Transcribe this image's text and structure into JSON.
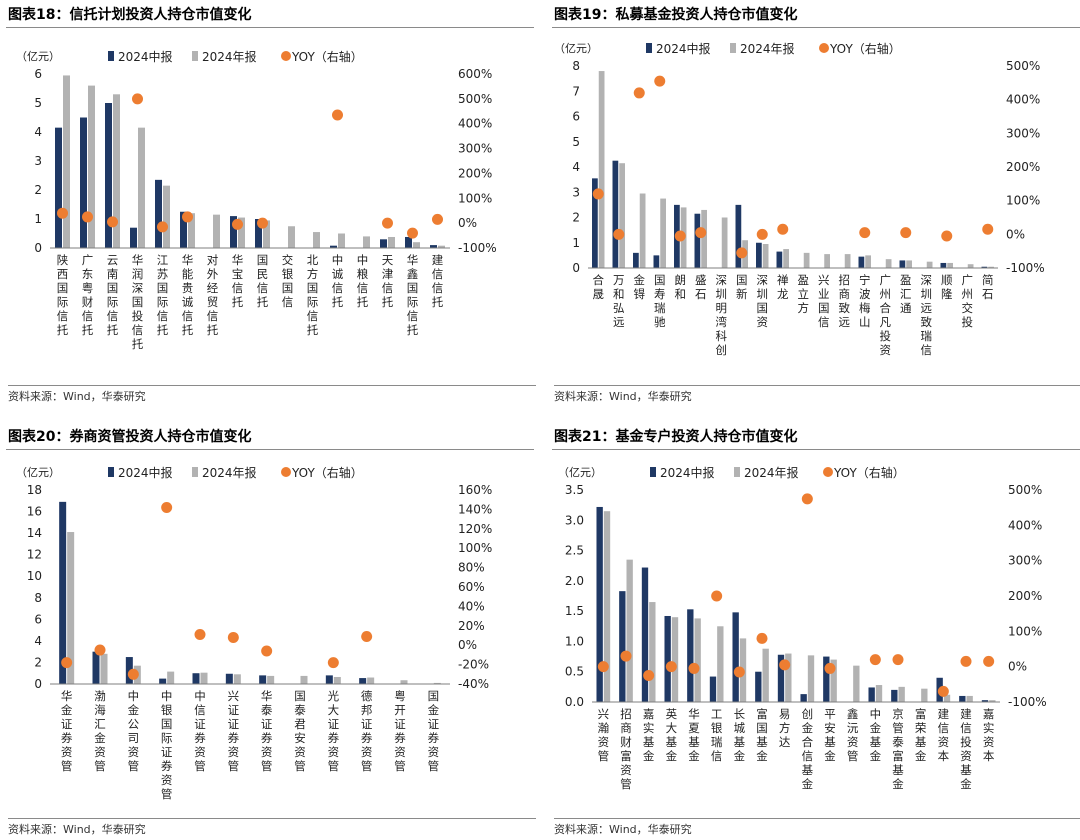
{
  "panels": [
    {
      "title": "图表18：信托计划投资人持仓市值变化",
      "source": "资料来源：Wind，华泰研究",
      "chart_data": {
        "type": "bar",
        "unit_label": "（亿元）",
        "legend": [
          "2024中报",
          "2024年报",
          "YOY（右轴）"
        ],
        "categories": [
          "陕西国际信托",
          "广东粤财信托",
          "云南国际信托",
          "华润深国投信托",
          "江苏国际信托",
          "华能贵诚信托",
          "对外经贸信托",
          "华宝信托",
          "国民信托",
          "交银国信",
          "北方国际信托",
          "中诚信托",
          "中粮信托",
          "天津信托",
          "华鑫国际信托",
          "建信信托"
        ],
        "series": [
          {
            "name": "2024中报",
            "values": [
              4.15,
              4.5,
              5.0,
              0.7,
              2.35,
              1.25,
              0,
              1.1,
              1.0,
              0,
              0,
              0.08,
              0,
              0.3,
              0.38,
              0.1
            ]
          },
          {
            "name": "2024年报",
            "values": [
              5.95,
              5.6,
              5.3,
              4.15,
              2.15,
              1.2,
              1.15,
              1.05,
              0.95,
              0.75,
              0.55,
              0.5,
              0.4,
              0.38,
              0.2,
              0.08
            ]
          },
          {
            "name": "YOY（右轴）",
            "axis": "right",
            "values": [
              40,
              25,
              5,
              500,
              -15,
              25,
              null,
              -5,
              0,
              null,
              null,
              435,
              null,
              0,
              -40,
              15
            ]
          }
        ],
        "left_ticks": [
          "0",
          "1",
          "2",
          "3",
          "4",
          "5",
          "6"
        ],
        "right_ticks": [
          "-100%",
          "0%",
          "100%",
          "200%",
          "300%",
          "400%",
          "500%",
          "600%"
        ],
        "ylim": [
          0,
          6
        ],
        "y2lim": [
          -100,
          600
        ]
      }
    },
    {
      "title": "图表19：私募基金投资人持仓市值变化",
      "source": "资料来源：Wind，华泰研究",
      "chart_data": {
        "type": "bar",
        "unit_label": "（亿元）",
        "legend": [
          "2024中报",
          "2024年报",
          "YOY（右轴）"
        ],
        "categories": [
          "合晟",
          "万和弘远",
          "金锝",
          "国寿瑞驰",
          "朗和",
          "盛石",
          "深圳明湾科创",
          "国新",
          "深圳国资",
          "禅龙",
          "盈立方",
          "兴业国信",
          "招商致远",
          "宁波梅山",
          "广州合凡投资",
          "盈汇通",
          "深圳远致瑞信",
          "顺隆",
          "广州交投",
          "简石"
        ],
        "series": [
          {
            "name": "2024中报",
            "values": [
              3.55,
              4.25,
              0.6,
              0.5,
              2.5,
              2.15,
              0,
              2.5,
              1.0,
              0.65,
              0,
              0,
              0,
              0.45,
              0,
              0.3,
              0,
              0.2,
              0,
              0.05
            ]
          },
          {
            "name": "2024年报",
            "values": [
              7.8,
              4.15,
              2.95,
              2.75,
              2.4,
              2.3,
              2.0,
              1.1,
              0.95,
              0.75,
              0.6,
              0.55,
              0.55,
              0.5,
              0.35,
              0.3,
              0.25,
              0.2,
              0.15,
              0.05
            ]
          },
          {
            "name": "YOY（右轴）",
            "axis": "right",
            "values": [
              120,
              0,
              420,
              455,
              -5,
              5,
              null,
              -55,
              0,
              15,
              null,
              null,
              null,
              5,
              null,
              5,
              null,
              -5,
              null,
              15
            ]
          }
        ],
        "left_ticks": [
          "0",
          "1",
          "2",
          "3",
          "4",
          "5",
          "6",
          "7",
          "8"
        ],
        "right_ticks": [
          "-100%",
          "0%",
          "100%",
          "200%",
          "300%",
          "400%",
          "500%"
        ],
        "ylim": [
          0,
          8
        ],
        "y2lim": [
          -100,
          500
        ]
      }
    },
    {
      "title": "图表20：券商资管投资人持仓市值变化",
      "source": "资料来源：Wind，华泰研究",
      "chart_data": {
        "type": "bar",
        "unit_label": "（亿元）",
        "legend": [
          "2024中报",
          "2024年报",
          "YOY（右轴）"
        ],
        "categories": [
          "华金证券资管",
          "渤海汇金资管",
          "中金公司资管",
          "中银国际证券资管",
          "中信证券资管",
          "兴证证券资管",
          "华泰证券资管",
          "国泰君安资管",
          "光大证券资管",
          "德邦证券资管",
          "粤开证券资管",
          "国金证券资管"
        ],
        "series": [
          {
            "name": "2024中报",
            "values": [
              16.9,
              3.0,
              2.5,
              0.5,
              1.0,
              0.95,
              0.8,
              0,
              0.8,
              0.55,
              0,
              0
            ]
          },
          {
            "name": "2024年报",
            "values": [
              14.1,
              2.8,
              1.7,
              1.15,
              1.05,
              0.9,
              0.75,
              0.75,
              0.65,
              0.6,
              0.35,
              0.1
            ]
          },
          {
            "name": "YOY（右轴）",
            "axis": "right",
            "values": [
              -18,
              -5,
              -30,
              142,
              11,
              8,
              -6,
              null,
              -18,
              9,
              null,
              null
            ]
          }
        ],
        "left_ticks": [
          "0",
          "2",
          "4",
          "6",
          "8",
          "10",
          "12",
          "14",
          "16",
          "18"
        ],
        "right_ticks": [
          "-40%",
          "-20%",
          "0%",
          "20%",
          "40%",
          "60%",
          "80%",
          "100%",
          "120%",
          "140%",
          "160%"
        ],
        "ylim": [
          0,
          18
        ],
        "y2lim": [
          -40,
          160
        ]
      }
    },
    {
      "title": "图表21：基金专户投资人持仓市值变化",
      "source": "资料来源：Wind，华泰研究",
      "chart_data": {
        "type": "bar",
        "unit_label": "（亿元）",
        "legend": [
          "2024中报",
          "2024年报",
          "YOY（右轴）"
        ],
        "categories": [
          "兴瀚资管",
          "招商财富资管",
          "嘉实基金",
          "英大基金",
          "华夏基金",
          "工银瑞信",
          "长城基金",
          "富国基金",
          "易方达",
          "创金合信基金",
          "平安基金",
          "鑫沅资管",
          "中金基金",
          "京管泰富基金",
          "富荣基金",
          "建信资本",
          "建信投资基金",
          "嘉实资本"
        ],
        "series": [
          {
            "name": "2024中报",
            "values": [
              3.22,
              1.83,
              2.22,
              1.42,
              1.53,
              0.42,
              1.48,
              0.5,
              0.78,
              0.13,
              0.75,
              0,
              0.24,
              0.2,
              0,
              0.4,
              0.1,
              0.03
            ]
          },
          {
            "name": "2024年报",
            "values": [
              3.15,
              2.35,
              1.65,
              1.4,
              1.38,
              1.25,
              1.05,
              0.88,
              0.8,
              0.77,
              0.7,
              0.6,
              0.28,
              0.25,
              0.22,
              0.12,
              0.1,
              0.03
            ]
          },
          {
            "name": "YOY（右轴）",
            "axis": "right",
            "values": [
              0,
              30,
              -25,
              0,
              -5,
              200,
              -15,
              80,
              5,
              475,
              -5,
              null,
              20,
              20,
              null,
              -70,
              15,
              15
            ]
          }
        ],
        "left_ticks": [
          "0.0",
          "0.5",
          "1.0",
          "1.5",
          "2.0",
          "2.5",
          "3.0",
          "3.5"
        ],
        "right_ticks": [
          "-100%",
          "0%",
          "100%",
          "200%",
          "300%",
          "400%",
          "500%"
        ],
        "ylim": [
          0,
          3.5
        ],
        "y2lim": [
          -100,
          500
        ]
      }
    }
  ],
  "colors": {
    "mid": "#1f3864",
    "annual": "#b2b2b2",
    "yoy": "#ed7d31",
    "axis": "#7f7f7f"
  }
}
